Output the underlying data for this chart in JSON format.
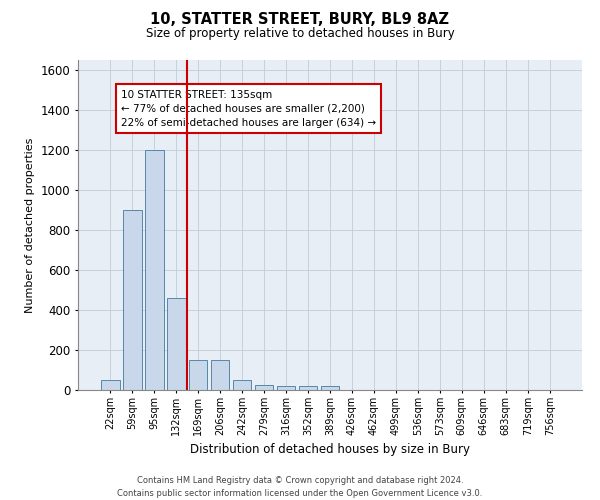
{
  "title": "10, STATTER STREET, BURY, BL9 8AZ",
  "subtitle": "Size of property relative to detached houses in Bury",
  "xlabel": "Distribution of detached houses by size in Bury",
  "ylabel": "Number of detached properties",
  "bar_color": "#c8d8ea",
  "bar_edge_color": "#5588aa",
  "grid_color": "#c8d0dc",
  "background_color": "#e8eef6",
  "vline_color": "#cc0000",
  "vline_x_index": 3,
  "categories": [
    "22sqm",
    "59sqm",
    "95sqm",
    "132sqm",
    "169sqm",
    "206sqm",
    "242sqm",
    "279sqm",
    "316sqm",
    "352sqm",
    "389sqm",
    "426sqm",
    "462sqm",
    "499sqm",
    "536sqm",
    "573sqm",
    "609sqm",
    "646sqm",
    "683sqm",
    "719sqm",
    "756sqm"
  ],
  "values": [
    50,
    900,
    1200,
    460,
    150,
    150,
    50,
    25,
    20,
    20,
    20,
    0,
    0,
    0,
    0,
    0,
    0,
    0,
    0,
    0,
    0
  ],
  "ylim": [
    0,
    1650
  ],
  "yticks": [
    0,
    200,
    400,
    600,
    800,
    1000,
    1200,
    1400,
    1600
  ],
  "annotation_line1": "10 STATTER STREET: 135sqm",
  "annotation_line2": "← 77% of detached houses are smaller (2,200)",
  "annotation_line3": "22% of semi-detached houses are larger (634) →",
  "footer": "Contains HM Land Registry data © Crown copyright and database right 2024.\nContains public sector information licensed under the Open Government Licence v3.0."
}
